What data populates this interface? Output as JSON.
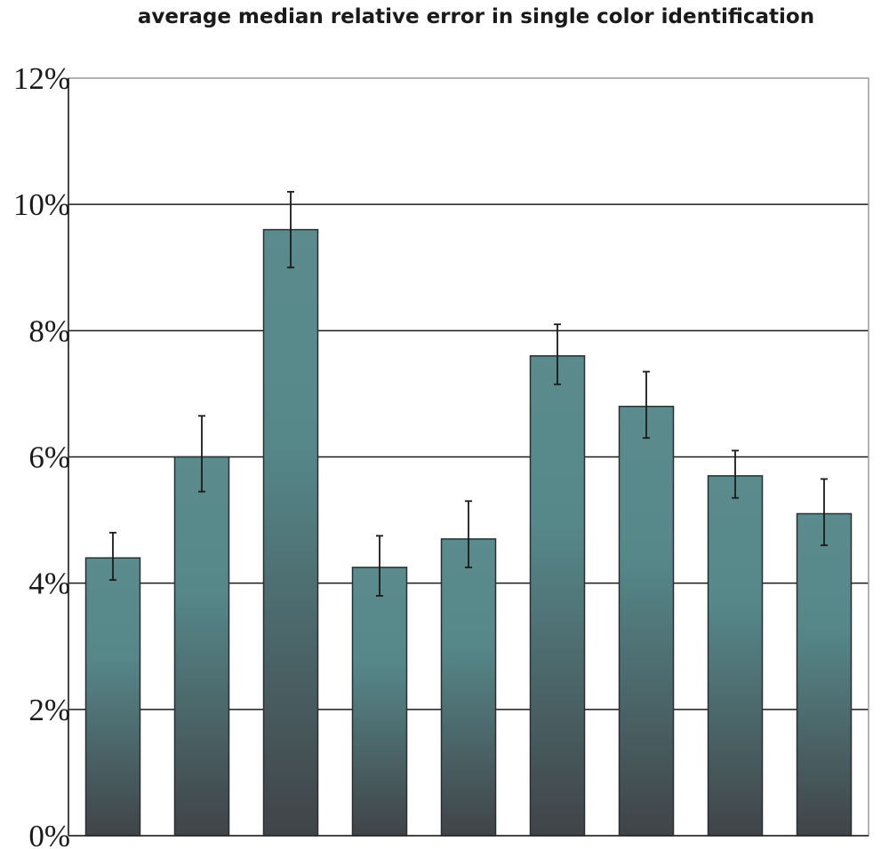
{
  "chart_data": {
    "type": "bar",
    "title": "average median relative error in single color identification",
    "xlabel": "",
    "ylabel": "",
    "ylim": [
      0,
      12
    ],
    "yticks": [
      0,
      2,
      4,
      6,
      8,
      10,
      12
    ],
    "ytick_labels": [
      "0%",
      "2%",
      "4%",
      "6%",
      "8%",
      "10%",
      "12%"
    ],
    "grid": true,
    "values": [
      4.4,
      6.0,
      9.6,
      4.25,
      4.7,
      7.6,
      6.8,
      5.7,
      5.1
    ],
    "error_low": [
      4.05,
      5.45,
      9.0,
      3.8,
      4.25,
      7.15,
      6.3,
      5.35,
      4.6
    ],
    "error_high": [
      4.8,
      6.65,
      10.2,
      4.75,
      5.3,
      8.1,
      7.35,
      6.1,
      5.65
    ],
    "colors": {
      "bar_top": "#5b8b8c",
      "bar_bottom": "#404448",
      "grid": "#1a1a1a",
      "frame": "#999999"
    }
  }
}
